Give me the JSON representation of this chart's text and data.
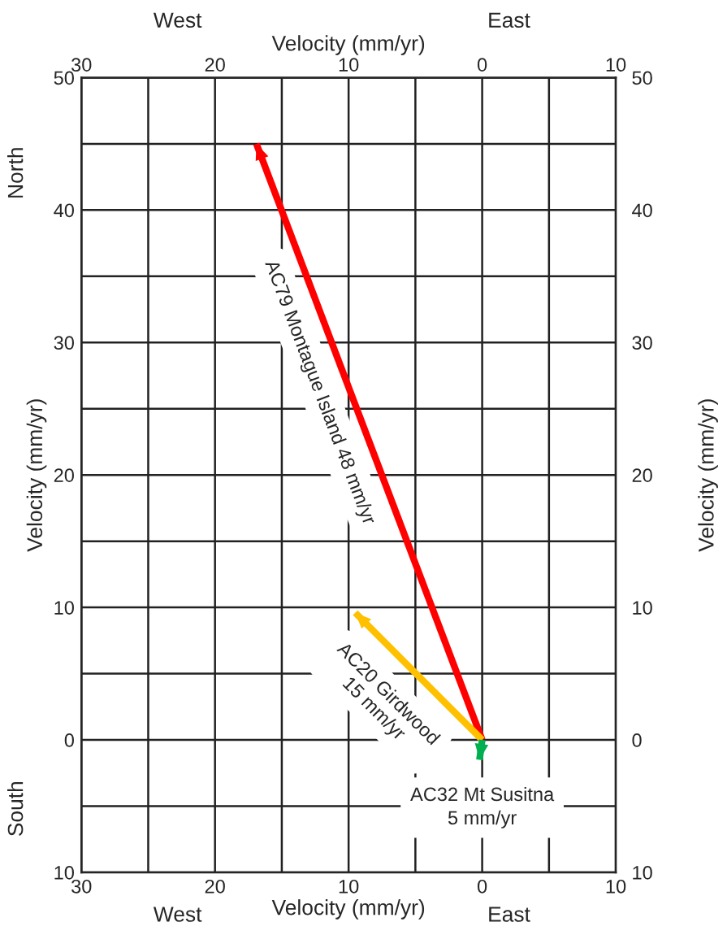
{
  "chart_data": {
    "type": "line",
    "xlabel": "Velocity (mm/yr)",
    "x2label": "Velocity (mm/yr)",
    "ylabel": "Velocity (mm/yr)",
    "y2label": "Velocity (mm/yr)",
    "xlim": [
      30,
      -10
    ],
    "x2lim": [
      30,
      -10
    ],
    "ylim": [
      -10,
      50
    ],
    "y2lim": [
      -10,
      50
    ],
    "xticks": [
      30,
      {
        "value": 25,
        "label": null
      },
      20,
      {
        "value": 15,
        "label": null
      },
      10,
      {
        "value": 5,
        "label": null
      },
      0,
      {
        "value": -5,
        "label": null
      },
      {
        "value": -10,
        "label": "10"
      }
    ],
    "x2ticks": [
      30,
      20,
      10,
      0,
      {
        "value": -10,
        "label": "10"
      }
    ],
    "yticks": [
      {
        "value": -10,
        "label": "10"
      },
      {
        "value": -5,
        "label": null
      },
      0,
      {
        "value": 5,
        "label": null
      },
      10,
      {
        "value": 15,
        "label": null
      },
      20,
      {
        "value": 25,
        "label": null
      },
      30,
      {
        "value": 35,
        "label": null
      },
      40,
      {
        "value": 45,
        "label": null
      },
      50
    ],
    "y2ticks": [
      {
        "value": -10,
        "label": "10"
      },
      0,
      10,
      20,
      30,
      40,
      50
    ],
    "grid": true,
    "series": [
      {
        "name": "AC79 Montague Island 48 mm/yr",
        "color": "#ff0000",
        "x": [
          0,
          16.9
        ],
        "values": [
          0,
          45.0
        ]
      },
      {
        "name": "AC20 Girdwood\n15 mm/yr",
        "color": "#ffc000",
        "x": [
          0,
          9.5
        ],
        "values": [
          0,
          9.6
        ]
      },
      {
        "name": "AC32 Mt Susitna\n5 mm/yr",
        "color": "#00b050",
        "x": [
          0,
          0.2
        ],
        "values": [
          0,
          -1.5
        ]
      }
    ],
    "annotations": [
      "West",
      "East",
      "West",
      "East",
      "North",
      "South"
    ]
  }
}
